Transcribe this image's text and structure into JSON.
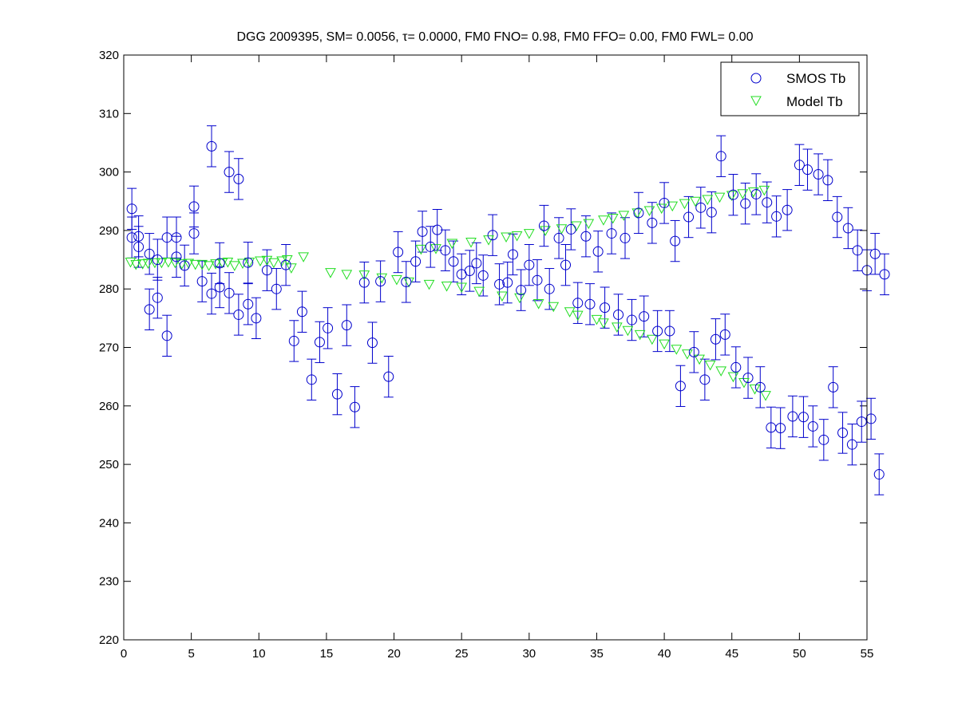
{
  "chart_data": {
    "type": "scatter",
    "title_prefix": "DGG 2009395, SM= 0.0056, ",
    "title_tau": "τ",
    "title_suffix": "= 0.0000, FM0 FNO= 0.98, FM0 FFO= 0.00, FM0 FWL= 0.00",
    "xlim": [
      0,
      55
    ],
    "ylim": [
      220,
      320
    ],
    "xticks": [
      0,
      5,
      10,
      15,
      20,
      25,
      30,
      35,
      40,
      45,
      50,
      55
    ],
    "yticks": [
      220,
      230,
      240,
      250,
      260,
      270,
      280,
      290,
      300,
      310,
      320
    ],
    "grid": false,
    "legend_position": "top-right",
    "series": [
      {
        "name": "SMOS Tb",
        "marker": "circle",
        "color": "#0000cc",
        "errorbar": 3.5,
        "points": [
          [
            0.6,
            293.7
          ],
          [
            0.6,
            288.8
          ],
          [
            1.1,
            287.2
          ],
          [
            1.1,
            289.0
          ],
          [
            1.9,
            286.0
          ],
          [
            1.9,
            276.5
          ],
          [
            2.5,
            285.0
          ],
          [
            2.5,
            278.5
          ],
          [
            3.2,
            288.8
          ],
          [
            3.2,
            272.0
          ],
          [
            3.9,
            285.5
          ],
          [
            3.9,
            288.8
          ],
          [
            4.5,
            284.0
          ],
          [
            5.2,
            294.1
          ],
          [
            5.2,
            289.5
          ],
          [
            5.8,
            281.3
          ],
          [
            6.5,
            304.4
          ],
          [
            6.5,
            279.2
          ],
          [
            7.1,
            284.4
          ],
          [
            7.1,
            280.3
          ],
          [
            7.8,
            300.0
          ],
          [
            7.8,
            279.3
          ],
          [
            8.5,
            298.8
          ],
          [
            8.5,
            275.6
          ],
          [
            9.2,
            284.5
          ],
          [
            9.2,
            277.4
          ],
          [
            9.8,
            275.0
          ],
          [
            10.6,
            283.2
          ],
          [
            11.3,
            280.0
          ],
          [
            12.0,
            284.1
          ],
          [
            12.6,
            271.1
          ],
          [
            13.2,
            276.1
          ],
          [
            13.9,
            264.5
          ],
          [
            14.5,
            270.9
          ],
          [
            15.1,
            273.3
          ],
          [
            15.8,
            262.0
          ],
          [
            16.5,
            273.8
          ],
          [
            17.1,
            259.8
          ],
          [
            17.8,
            281.1
          ],
          [
            18.4,
            270.8
          ],
          [
            19.0,
            281.3
          ],
          [
            19.6,
            265.0
          ],
          [
            20.3,
            286.3
          ],
          [
            20.9,
            281.2
          ],
          [
            21.6,
            284.7
          ],
          [
            22.1,
            289.8
          ],
          [
            22.7,
            287.2
          ],
          [
            23.2,
            290.1
          ],
          [
            23.8,
            286.6
          ],
          [
            24.4,
            284.7
          ],
          [
            25.0,
            282.5
          ],
          [
            25.6,
            283.1
          ],
          [
            26.1,
            284.4
          ],
          [
            26.6,
            282.3
          ],
          [
            27.3,
            289.2
          ],
          [
            27.8,
            280.8
          ],
          [
            28.4,
            281.1
          ],
          [
            28.8,
            285.9
          ],
          [
            29.4,
            279.8
          ],
          [
            30.0,
            284.1
          ],
          [
            30.6,
            281.5
          ],
          [
            31.1,
            290.8
          ],
          [
            31.5,
            280.0
          ],
          [
            32.2,
            288.7
          ],
          [
            32.7,
            284.1
          ],
          [
            33.1,
            290.2
          ],
          [
            33.6,
            277.6
          ],
          [
            34.2,
            289.0
          ],
          [
            34.5,
            277.4
          ],
          [
            35.1,
            286.4
          ],
          [
            35.6,
            276.8
          ],
          [
            36.1,
            289.5
          ],
          [
            36.6,
            275.6
          ],
          [
            37.1,
            288.7
          ],
          [
            37.6,
            274.7
          ],
          [
            38.1,
            293.0
          ],
          [
            38.5,
            275.3
          ],
          [
            39.1,
            291.3
          ],
          [
            39.5,
            272.8
          ],
          [
            40.0,
            294.7
          ],
          [
            40.4,
            272.8
          ],
          [
            40.8,
            288.2
          ],
          [
            41.2,
            263.4
          ],
          [
            41.8,
            292.3
          ],
          [
            42.2,
            269.2
          ],
          [
            42.7,
            293.9
          ],
          [
            43.0,
            264.5
          ],
          [
            43.5,
            293.1
          ],
          [
            43.8,
            271.4
          ],
          [
            44.2,
            302.7
          ],
          [
            44.5,
            272.2
          ],
          [
            45.1,
            296.1
          ],
          [
            45.3,
            266.6
          ],
          [
            46.0,
            294.6
          ],
          [
            46.2,
            264.8
          ],
          [
            46.8,
            296.2
          ],
          [
            47.1,
            263.2
          ],
          [
            47.6,
            294.8
          ],
          [
            47.9,
            256.3
          ],
          [
            48.3,
            292.4
          ],
          [
            48.6,
            256.2
          ],
          [
            49.1,
            293.5
          ],
          [
            49.5,
            258.2
          ],
          [
            50.0,
            301.2
          ],
          [
            50.3,
            258.1
          ],
          [
            50.6,
            300.4
          ],
          [
            51.0,
            256.5
          ],
          [
            51.4,
            299.6
          ],
          [
            51.8,
            254.2
          ],
          [
            52.1,
            298.6
          ],
          [
            52.5,
            263.2
          ],
          [
            52.8,
            292.3
          ],
          [
            53.2,
            255.4
          ],
          [
            53.6,
            290.4
          ],
          [
            53.9,
            253.4
          ],
          [
            54.3,
            286.6
          ],
          [
            54.6,
            257.3
          ],
          [
            55.0,
            283.2
          ],
          [
            55.3,
            257.8
          ],
          [
            55.6,
            286.0
          ],
          [
            55.9,
            248.3
          ],
          [
            56.3,
            282.5
          ]
        ]
      },
      {
        "name": "Model Tb",
        "marker": "triangle-down",
        "color": "#22dd22",
        "points": [
          [
            0.5,
            284.6
          ],
          [
            0.9,
            284.2
          ],
          [
            1.4,
            284.3
          ],
          [
            1.8,
            284.4
          ],
          [
            2.3,
            284.5
          ],
          [
            2.8,
            284.5
          ],
          [
            3.3,
            284.6
          ],
          [
            3.8,
            284.5
          ],
          [
            4.3,
            284.3
          ],
          [
            4.8,
            284.4
          ],
          [
            5.3,
            284.2
          ],
          [
            5.8,
            284.2
          ],
          [
            6.3,
            284.0
          ],
          [
            6.8,
            284.3
          ],
          [
            7.3,
            284.5
          ],
          [
            7.7,
            284.6
          ],
          [
            8.2,
            284.0
          ],
          [
            8.8,
            284.4
          ],
          [
            9.3,
            284.6
          ],
          [
            10.1,
            284.8
          ],
          [
            10.6,
            284.9
          ],
          [
            11.1,
            284.5
          ],
          [
            11.7,
            284.8
          ],
          [
            12.1,
            285.0
          ],
          [
            12.4,
            283.6
          ],
          [
            13.3,
            285.5
          ],
          [
            15.3,
            282.8
          ],
          [
            16.5,
            282.5
          ],
          [
            17.8,
            282.4
          ],
          [
            19.1,
            281.9
          ],
          [
            20.2,
            281.6
          ],
          [
            21.1,
            281.2
          ],
          [
            22.0,
            286.8
          ],
          [
            22.6,
            280.8
          ],
          [
            23.1,
            286.9
          ],
          [
            23.9,
            280.5
          ],
          [
            24.3,
            287.8
          ],
          [
            25.0,
            280.3
          ],
          [
            25.7,
            288.0
          ],
          [
            26.3,
            279.6
          ],
          [
            27.0,
            288.4
          ],
          [
            28.3,
            288.9
          ],
          [
            28.0,
            278.8
          ],
          [
            29.1,
            289.1
          ],
          [
            29.3,
            278.5
          ],
          [
            30.0,
            289.5
          ],
          [
            30.7,
            277.5
          ],
          [
            31.2,
            290.0
          ],
          [
            31.8,
            277.0
          ],
          [
            32.4,
            290.3
          ],
          [
            33.0,
            276.1
          ],
          [
            33.5,
            290.8
          ],
          [
            33.6,
            275.5
          ],
          [
            34.4,
            291.2
          ],
          [
            35.0,
            274.8
          ],
          [
            35.5,
            291.8
          ],
          [
            35.5,
            274.2
          ],
          [
            36.2,
            292.1
          ],
          [
            36.5,
            273.5
          ],
          [
            37.0,
            292.6
          ],
          [
            37.3,
            272.9
          ],
          [
            38.0,
            293.0
          ],
          [
            38.2,
            272.2
          ],
          [
            38.9,
            293.4
          ],
          [
            39.1,
            271.4
          ],
          [
            39.8,
            293.8
          ],
          [
            40.0,
            270.6
          ],
          [
            40.6,
            294.2
          ],
          [
            40.9,
            269.7
          ],
          [
            41.5,
            294.6
          ],
          [
            41.7,
            268.9
          ],
          [
            42.3,
            295.0
          ],
          [
            42.6,
            268.0
          ],
          [
            43.2,
            295.3
          ],
          [
            43.4,
            267.0
          ],
          [
            44.1,
            295.7
          ],
          [
            44.2,
            266.0
          ],
          [
            45.0,
            296.0
          ],
          [
            45.1,
            265.0
          ],
          [
            45.8,
            296.3
          ],
          [
            45.9,
            264.0
          ],
          [
            46.6,
            296.6
          ],
          [
            46.7,
            262.9
          ],
          [
            47.4,
            296.9
          ],
          [
            47.5,
            261.8
          ]
        ]
      }
    ]
  }
}
